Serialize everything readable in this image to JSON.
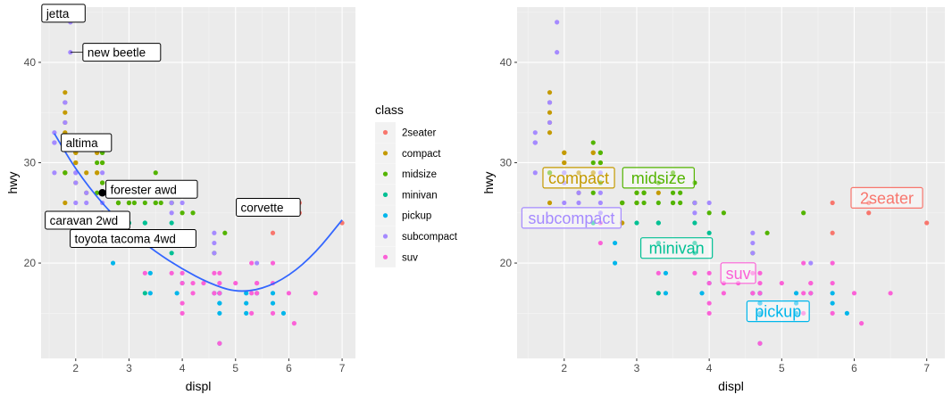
{
  "chart_data": [
    {
      "type": "scatter",
      "panel": "left",
      "xlabel": "displ",
      "ylabel": "hwy",
      "xlim": [
        1.35,
        7.25
      ],
      "ylim": [
        10.5,
        45.5
      ],
      "x_ticks": [
        2,
        3,
        4,
        5,
        6,
        7
      ],
      "y_ticks": [
        20,
        30,
        40
      ],
      "x_tick_labels": [
        "2",
        "3",
        "4",
        "5",
        "6",
        "7"
      ],
      "y_tick_labels": [
        "20",
        "30",
        "40"
      ],
      "grid": true,
      "series": [
        {
          "name": "2seater",
          "points": [
            [
              5.7,
              26
            ],
            [
              5.7,
              23
            ],
            [
              6.2,
              26
            ],
            [
              6.2,
              25
            ],
            [
              7.0,
              24
            ]
          ]
        },
        {
          "name": "compact",
          "points": [
            [
              1.8,
              29
            ],
            [
              1.8,
              29
            ],
            [
              2.0,
              31
            ],
            [
              2.0,
              30
            ],
            [
              2.8,
              26
            ],
            [
              2.8,
              26
            ],
            [
              3.1,
              27
            ],
            [
              1.8,
              26
            ],
            [
              2.0,
              28
            ],
            [
              2.4,
              29
            ],
            [
              2.4,
              29
            ],
            [
              3.0,
              26
            ],
            [
              3.0,
              27
            ],
            [
              2.2,
              27
            ],
            [
              2.2,
              29
            ],
            [
              2.4,
              31
            ],
            [
              2.4,
              31
            ],
            [
              3.0,
              26
            ],
            [
              3.3,
              27
            ],
            [
              1.8,
              37
            ],
            [
              1.8,
              35
            ],
            [
              1.8,
              33
            ],
            [
              1.8,
              29
            ],
            [
              1.8,
              36
            ],
            [
              1.8,
              34
            ],
            [
              2.0,
              30
            ],
            [
              2.0,
              31
            ],
            [
              2.5,
              28
            ],
            [
              2.5,
              30
            ],
            [
              2.8,
              24
            ]
          ]
        },
        {
          "name": "midsize",
          "points": [
            [
              2.8,
              26
            ],
            [
              3.1,
              27
            ],
            [
              4.2,
              25
            ],
            [
              2.4,
              27
            ],
            [
              2.4,
              30
            ],
            [
              2.5,
              30
            ],
            [
              2.5,
              31
            ],
            [
              3.1,
              26
            ],
            [
              3.5,
              26
            ],
            [
              3.6,
              26
            ],
            [
              2.4,
              32
            ],
            [
              3.0,
              27
            ],
            [
              3.3,
              28
            ],
            [
              3.3,
              26
            ],
            [
              3.8,
              26
            ],
            [
              3.8,
              26
            ],
            [
              3.8,
              28
            ],
            [
              4.0,
              25
            ],
            [
              3.0,
              26
            ],
            [
              3.5,
              29
            ],
            [
              2.5,
              31
            ],
            [
              2.5,
              28
            ],
            [
              3.5,
              26
            ],
            [
              3.5,
              27
            ],
            [
              4.6,
              21
            ],
            [
              5.3,
              25
            ],
            [
              1.8,
              29
            ],
            [
              2.8,
              26
            ],
            [
              3.1,
              27
            ],
            [
              3.6,
              27
            ],
            [
              4.8,
              23
            ]
          ]
        },
        {
          "name": "minivan",
          "points": [
            [
              2.4,
              24
            ],
            [
              3.0,
              24
            ],
            [
              3.3,
              22
            ],
            [
              3.3,
              22
            ],
            [
              3.3,
              24
            ],
            [
              3.3,
              24
            ],
            [
              3.8,
              22
            ],
            [
              3.8,
              21
            ],
            [
              4.0,
              23
            ],
            [
              3.8,
              24
            ],
            [
              3.3,
              17
            ]
          ]
        },
        {
          "name": "pickup",
          "points": [
            [
              2.7,
              20
            ],
            [
              2.7,
              22
            ],
            [
              3.4,
              17
            ],
            [
              3.4,
              19
            ],
            [
              4.0,
              18
            ],
            [
              4.7,
              17
            ],
            [
              4.7,
              16
            ],
            [
              4.7,
              15
            ],
            [
              5.2,
              15
            ],
            [
              5.2,
              16
            ],
            [
              5.7,
              16
            ],
            [
              5.9,
              15
            ],
            [
              4.7,
              17
            ],
            [
              4.7,
              17
            ],
            [
              4.7,
              16
            ],
            [
              4.7,
              12
            ],
            [
              5.2,
              17
            ],
            [
              5.7,
              17
            ],
            [
              3.9,
              17
            ],
            [
              4.6,
              17
            ],
            [
              5.4,
              17
            ]
          ]
        },
        {
          "name": "subcompact",
          "points": [
            [
              1.6,
              33
            ],
            [
              1.6,
              32
            ],
            [
              1.6,
              32
            ],
            [
              1.6,
              29
            ],
            [
              1.6,
              32
            ],
            [
              1.8,
              34
            ],
            [
              1.8,
              36
            ],
            [
              1.8,
              36
            ],
            [
              2.0,
              29
            ],
            [
              1.9,
              44
            ],
            [
              1.9,
              41
            ],
            [
              2.0,
              26
            ],
            [
              2.0,
              28
            ],
            [
              2.0,
              29
            ],
            [
              2.5,
              26
            ],
            [
              2.5,
              29
            ],
            [
              2.2,
              26
            ],
            [
              2.2,
              27
            ],
            [
              2.5,
              27
            ],
            [
              2.5,
              25
            ],
            [
              3.8,
              26
            ],
            [
              3.8,
              25
            ],
            [
              4.0,
              26
            ],
            [
              4.6,
              22
            ],
            [
              4.6,
              23
            ],
            [
              4.6,
              21
            ],
            [
              5.4,
              20
            ]
          ]
        },
        {
          "name": "suv",
          "points": [
            [
              5.3,
              20
            ],
            [
              5.3,
              15
            ],
            [
              5.7,
              20
            ],
            [
              6.0,
              17
            ],
            [
              4.7,
              12
            ],
            [
              4.7,
              17
            ],
            [
              5.7,
              18
            ],
            [
              6.5,
              17
            ],
            [
              4.2,
              17
            ],
            [
              4.0,
              19
            ],
            [
              4.6,
              17
            ],
            [
              5.4,
              18
            ],
            [
              5.4,
              18
            ],
            [
              4.0,
              15
            ],
            [
              4.7,
              19
            ],
            [
              4.7,
              18
            ],
            [
              2.5,
              22
            ],
            [
              2.5,
              24
            ],
            [
              3.8,
              19
            ],
            [
              4.0,
              18
            ],
            [
              4.4,
              18
            ],
            [
              5.4,
              17
            ],
            [
              3.3,
              19
            ],
            [
              5.0,
              18
            ],
            [
              5.7,
              15
            ],
            [
              6.1,
              14
            ],
            [
              5.3,
              17
            ],
            [
              4.6,
              19
            ],
            [
              4.0,
              16
            ],
            [
              4.2,
              18
            ]
          ]
        }
      ],
      "smooth_line": [
        [
          1.6,
          32.9
        ],
        [
          2.0,
          29.3
        ],
        [
          2.5,
          25.9
        ],
        [
          3.0,
          23.2
        ],
        [
          3.5,
          21.1
        ],
        [
          4.0,
          19.4
        ],
        [
          4.5,
          18.0
        ],
        [
          5.0,
          17.1
        ],
        [
          5.5,
          17.4
        ],
        [
          6.0,
          18.7
        ],
        [
          6.5,
          21.0
        ],
        [
          7.0,
          24.3
        ]
      ],
      "highlight_points": [
        [
          2.5,
          32
        ],
        [
          2.5,
          27
        ],
        [
          2.4,
          24
        ],
        [
          2.7,
          22
        ],
        [
          5.7,
          26
        ]
      ],
      "annotations": [
        {
          "label": "jetta",
          "x": 1.9,
          "y": 44
        },
        {
          "label": "new beetle",
          "x": 1.9,
          "y": 41
        },
        {
          "label": "altima",
          "x": 2.5,
          "y": 32
        },
        {
          "label": "forester awd",
          "x": 2.5,
          "y": 27
        },
        {
          "label": "caravan 2wd",
          "x": 2.4,
          "y": 24
        },
        {
          "label": "toyota tacoma 4wd",
          "x": 2.7,
          "y": 22
        },
        {
          "label": "corvette",
          "x": 5.7,
          "y": 26
        }
      ]
    },
    {
      "type": "scatter",
      "panel": "right",
      "xlabel": "displ",
      "ylabel": "hwy",
      "xlim": [
        1.35,
        7.25
      ],
      "ylim": [
        10.5,
        45.5
      ],
      "x_ticks": [
        2,
        3,
        4,
        5,
        6,
        7
      ],
      "y_ticks": [
        20,
        30,
        40
      ],
      "x_tick_labels": [
        "2",
        "3",
        "4",
        "5",
        "6",
        "7"
      ],
      "y_tick_labels": [
        "20",
        "30",
        "40"
      ],
      "grid": true,
      "same_points_as": "left",
      "class_labels": [
        {
          "label": "compact",
          "class": "compact",
          "x": 2.2,
          "y": 28.5
        },
        {
          "label": "midsize",
          "class": "midsize",
          "x": 3.3,
          "y": 28.5
        },
        {
          "label": "subcompact",
          "class": "subcompact",
          "x": 2.1,
          "y": 24.5
        },
        {
          "label": "minivan",
          "class": "minivan",
          "x": 3.55,
          "y": 21.5
        },
        {
          "label": "suv",
          "class": "suv",
          "x": 4.4,
          "y": 19
        },
        {
          "label": "pickup",
          "class": "pickup",
          "x": 4.95,
          "y": 15.2
        },
        {
          "label": "2seater",
          "class": "2seater",
          "x": 6.45,
          "y": 26.5
        }
      ]
    }
  ],
  "legend": {
    "title": "class",
    "position": "right of left panel",
    "items": [
      {
        "label": "2seater",
        "color": "#F8766D"
      },
      {
        "label": "compact",
        "color": "#C49A00"
      },
      {
        "label": "midsize",
        "color": "#53B400"
      },
      {
        "label": "minivan",
        "color": "#00C094"
      },
      {
        "label": "pickup",
        "color": "#00B6EB"
      },
      {
        "label": "subcompact",
        "color": "#A58AFF"
      },
      {
        "label": "suv",
        "color": "#FB61D7"
      }
    ]
  },
  "colors": {
    "panel_bg": "#EBEBEB",
    "grid_major": "#FFFFFF",
    "smooth": "#3366FF",
    "axis_text": "#4D4D4D",
    "highlight": "#000000"
  }
}
